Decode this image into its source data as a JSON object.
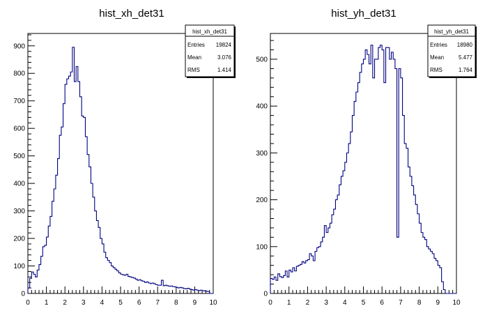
{
  "chart_data": [
    {
      "type": "histogram",
      "title": "hist_xh_det31",
      "xlabel": "",
      "ylabel": "",
      "xlim": [
        0,
        10
      ],
      "ylim": [
        0,
        945
      ],
      "x_ticks": [
        "0",
        "1",
        "2",
        "3",
        "4",
        "5",
        "6",
        "7",
        "8",
        "9",
        "10"
      ],
      "y_ticks": [
        "0",
        "100",
        "200",
        "300",
        "400",
        "500",
        "600",
        "700",
        "800",
        "900"
      ],
      "line_color": "#000080",
      "stats": {
        "name": "hist_xh_det31",
        "rows": [
          {
            "label": "Entries",
            "value": "19824"
          },
          {
            "label": "Mean",
            "value": "3.076"
          },
          {
            "label": "RMS",
            "value": "1.414"
          }
        ]
      },
      "bin_width": 0.1,
      "x_start": 0,
      "values": [
        20,
        55,
        78,
        70,
        60,
        85,
        105,
        135,
        170,
        175,
        205,
        245,
        280,
        335,
        380,
        430,
        490,
        575,
        605,
        690,
        760,
        780,
        790,
        805,
        895,
        770,
        825,
        770,
        715,
        645,
        640,
        570,
        505,
        460,
        400,
        350,
        300,
        265,
        240,
        200,
        180,
        150,
        130,
        120,
        112,
        100,
        94,
        88,
        82,
        75,
        70,
        68,
        66,
        70,
        62,
        60,
        58,
        56,
        52,
        48,
        50,
        46,
        44,
        40,
        42,
        38,
        36,
        38,
        35,
        32,
        30,
        30,
        48,
        28,
        30,
        28,
        26,
        27,
        25,
        24,
        22,
        20,
        22,
        20,
        18,
        17,
        19,
        16,
        14,
        12,
        14,
        12,
        10,
        12,
        10,
        9,
        8,
        7,
        0,
        0
      ]
    },
    {
      "type": "histogram",
      "title": "hist_yh_det31",
      "xlabel": "",
      "ylabel": "",
      "xlim": [
        0,
        10
      ],
      "ylim": [
        0,
        555
      ],
      "x_ticks": [
        "0",
        "1",
        "2",
        "3",
        "4",
        "5",
        "6",
        "7",
        "8",
        "9",
        "10"
      ],
      "y_ticks": [
        "0",
        "100",
        "200",
        "300",
        "400",
        "500"
      ],
      "line_color": "#000080",
      "stats": {
        "name": "hist_yh_det31",
        "rows": [
          {
            "label": "Entries",
            "value": "18980"
          },
          {
            "label": "Mean",
            "value": "5.477"
          },
          {
            "label": "RMS",
            "value": "1.764"
          }
        ]
      },
      "bin_width": 0.1,
      "x_start": 0,
      "values": [
        32,
        30,
        35,
        28,
        42,
        36,
        34,
        38,
        48,
        35,
        50,
        46,
        55,
        48,
        58,
        60,
        62,
        68,
        65,
        70,
        72,
        85,
        80,
        70,
        90,
        98,
        100,
        110,
        120,
        145,
        130,
        140,
        150,
        168,
        180,
        200,
        210,
        232,
        250,
        262,
        280,
        300,
        320,
        345,
        380,
        410,
        430,
        450,
        472,
        490,
        500,
        520,
        510,
        490,
        530,
        460,
        500,
        500,
        525,
        530,
        520,
        450,
        525,
        525,
        500,
        515,
        500,
        480,
        120,
        480,
        460,
        380,
        320,
        310,
        270,
        250,
        230,
        210,
        190,
        170,
        150,
        130,
        120,
        115,
        100,
        95,
        90,
        85,
        75,
        70,
        60,
        55,
        25,
        8,
        0,
        0,
        0,
        0,
        0,
        0
      ]
    }
  ]
}
